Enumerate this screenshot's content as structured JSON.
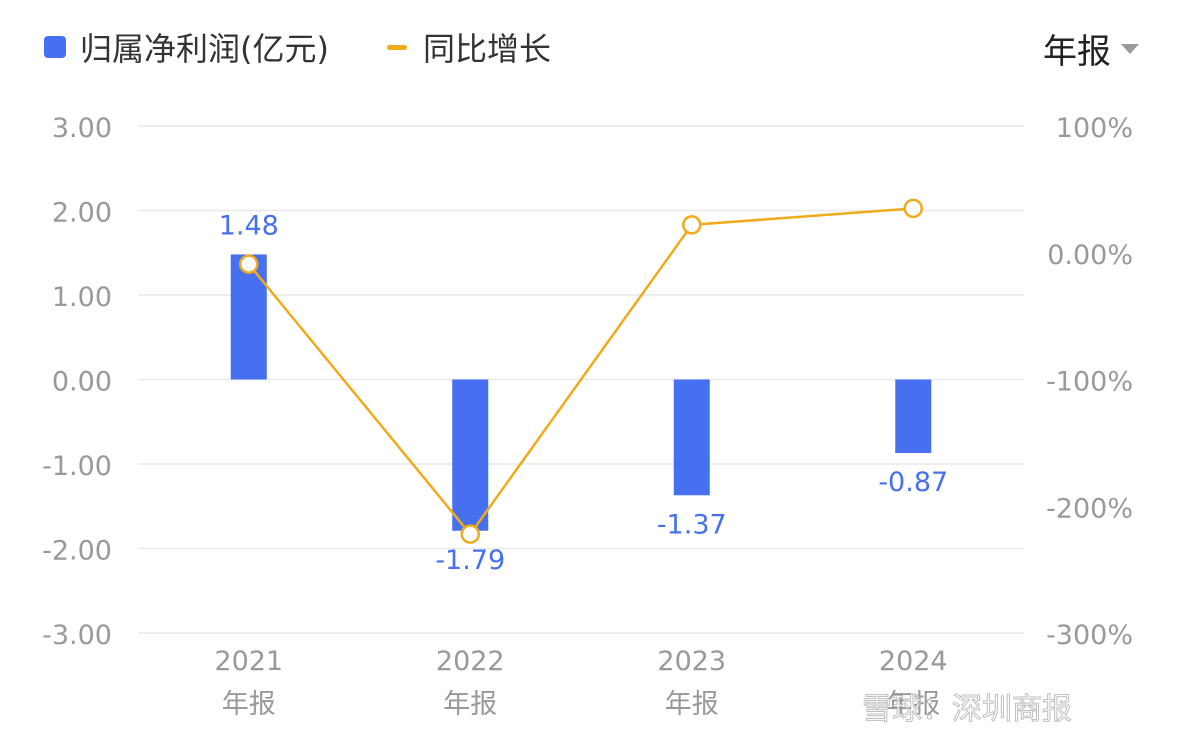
{
  "legend": {
    "series1": "归属净利润(亿元)",
    "series2": "同比增长"
  },
  "period_selector": {
    "label": "年报",
    "icon": "caret-down-icon"
  },
  "watermark": "雪球：深圳商报",
  "colors": {
    "bar": "#4670f0",
    "line": "#f0aa1a",
    "bar_label": "#4670f0",
    "axis_text": "#999999",
    "grid": "#e9e9e9"
  },
  "chart_data": {
    "type": "bar",
    "categories": [
      [
        "2021",
        "年报"
      ],
      [
        "2022",
        "年报"
      ],
      [
        "2023",
        "年报"
      ],
      [
        "2024",
        "年报"
      ]
    ],
    "series": [
      {
        "name": "归属净利润(亿元)",
        "type": "bar",
        "axis": "left",
        "values": [
          1.48,
          -1.79,
          -1.37,
          -0.87
        ],
        "value_labels": [
          "1.48",
          "-1.79",
          "-1.37",
          "-0.87"
        ]
      },
      {
        "name": "同比增长",
        "type": "line",
        "axis": "right",
        "values": [
          -9,
          -222,
          22,
          35
        ]
      }
    ],
    "left_axis": {
      "ylim": [
        -3,
        3
      ],
      "ticks": [
        3,
        2,
        1,
        0,
        -1,
        -2,
        -3
      ],
      "tick_labels": [
        "3.00",
        "2.00",
        "1.00",
        "0.00",
        "-1.00",
        "-2.00",
        "-3.00"
      ]
    },
    "right_axis": {
      "ylim": [
        -300,
        100
      ],
      "ticks": [
        100,
        0,
        -100,
        -200,
        -300
      ],
      "tick_labels": [
        "100%",
        "0.00%",
        "-100%",
        "-200%",
        "-300%"
      ]
    },
    "grid": true,
    "legend_position": "top-left"
  }
}
